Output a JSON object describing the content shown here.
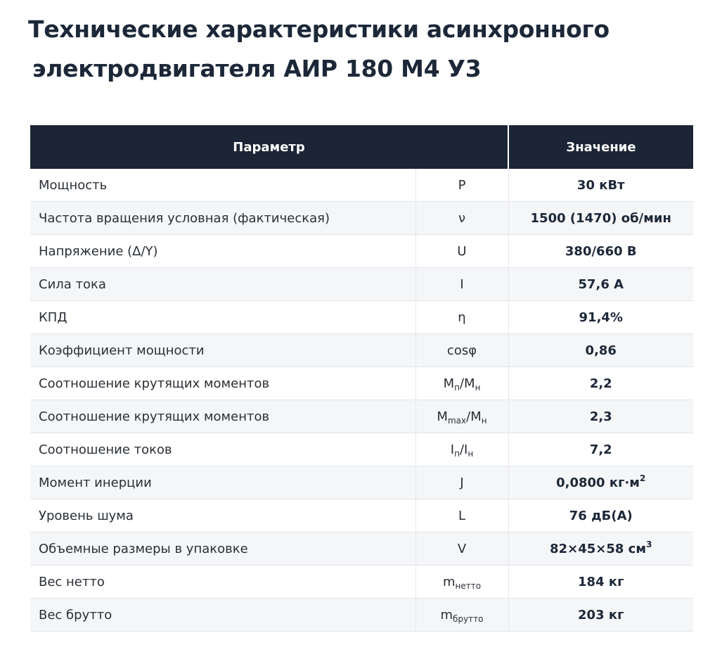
{
  "title": {
    "line1": "Технические характеристики асинхронного",
    "line2": "электродвигателя АИР 180 М4 У3"
  },
  "table": {
    "headers": {
      "param": "Параметр",
      "value": "Значение"
    },
    "rows": [
      {
        "param": "Мощность",
        "sym": {
          "main": "P"
        },
        "value": {
          "main": "30 кВт"
        }
      },
      {
        "param": "Частота вращения условная (фактическая)",
        "sym": {
          "main": "ν"
        },
        "value": {
          "main": "1500 (1470) об/мин"
        }
      },
      {
        "param": "Напряжение (Δ/Y)",
        "sym": {
          "main": "U"
        },
        "value": {
          "main": "380/660 В"
        }
      },
      {
        "param": "Сила тока",
        "sym": {
          "main": "I"
        },
        "value": {
          "main": "57,6 А"
        }
      },
      {
        "param": "КПД",
        "sym": {
          "main": "η"
        },
        "value": {
          "main": "91,4%"
        }
      },
      {
        "param": "Коэффициент мощности",
        "sym": {
          "main": "cosφ"
        },
        "value": {
          "main": "0,86"
        }
      },
      {
        "param": "Соотношение крутящих моментов",
        "sym": {
          "a": "M",
          "a_sub": "п",
          "sep": "/",
          "b": "M",
          "b_sub": "н"
        },
        "value": {
          "main": "2,2"
        }
      },
      {
        "param": "Соотношение крутящих моментов",
        "sym": {
          "a": "M",
          "a_sub": "max",
          "sep": "/",
          "b": "M",
          "b_sub": "н"
        },
        "value": {
          "main": "2,3"
        }
      },
      {
        "param": "Соотношение токов",
        "sym": {
          "a": "I",
          "a_sub": "п",
          "sep": "/",
          "b": "I",
          "b_sub": "н"
        },
        "value": {
          "main": "7,2"
        }
      },
      {
        "param": "Момент инерции",
        "sym": {
          "main": "J"
        },
        "value": {
          "main": "0,0800 кг·м",
          "sup": "2"
        }
      },
      {
        "param": "Уровень шума",
        "sym": {
          "main": "L"
        },
        "value": {
          "main": "76 дБ(А)"
        }
      },
      {
        "param": "Объемные размеры в упаковке",
        "sym": {
          "main": "V"
        },
        "value": {
          "main": "82×45×58 см",
          "sup": "3"
        }
      },
      {
        "param": "Вес нетто",
        "sym": {
          "a": "m",
          "a_sub": "нетто"
        },
        "value": {
          "main": "184 кг"
        }
      },
      {
        "param": "Вес брутто",
        "sym": {
          "a": "m",
          "a_sub": "брутто"
        },
        "value": {
          "main": "203 кг"
        }
      }
    ]
  }
}
